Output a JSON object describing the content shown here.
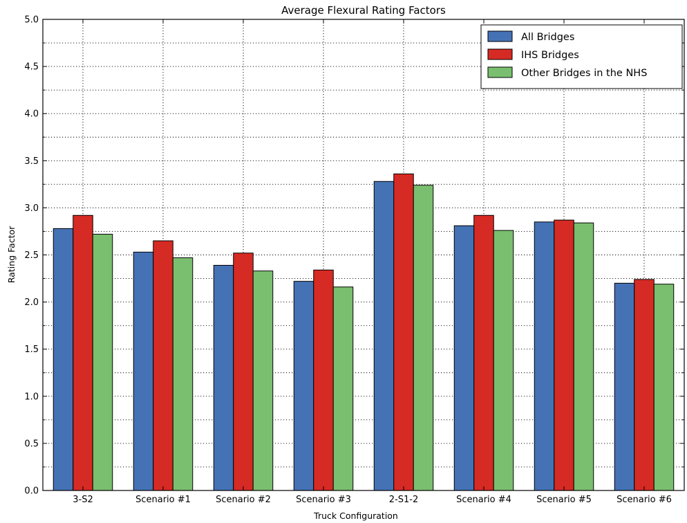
{
  "chart_data": {
    "type": "bar",
    "title": "Average Flexural Rating Factors",
    "xlabel": "Truck Configuration",
    "ylabel": "Rating Factor",
    "ylim": [
      0,
      5.0
    ],
    "yticks": [
      0.0,
      0.5,
      1.0,
      1.5,
      2.0,
      2.5,
      3.0,
      3.5,
      4.0,
      4.5,
      5.0
    ],
    "grid": true,
    "legend_position": "top-right",
    "categories": [
      "3-S2",
      "Scenario #1",
      "Scenario #2",
      "Scenario #3",
      "2-S1-2",
      "Scenario #4",
      "Scenario #5",
      "Scenario #6"
    ],
    "series": [
      {
        "name": "All Bridges",
        "color": "#4572b5",
        "values": [
          2.78,
          2.53,
          2.39,
          2.22,
          3.28,
          2.81,
          2.85,
          2.2
        ]
      },
      {
        "name": "IHS Bridges",
        "color": "#d62a24",
        "values": [
          2.92,
          2.65,
          2.52,
          2.34,
          3.36,
          2.92,
          2.87,
          2.24
        ]
      },
      {
        "name": "Other Bridges in the NHS",
        "color": "#7abf6f",
        "values": [
          2.72,
          2.47,
          2.33,
          2.16,
          3.24,
          2.76,
          2.84,
          2.19
        ]
      }
    ]
  }
}
